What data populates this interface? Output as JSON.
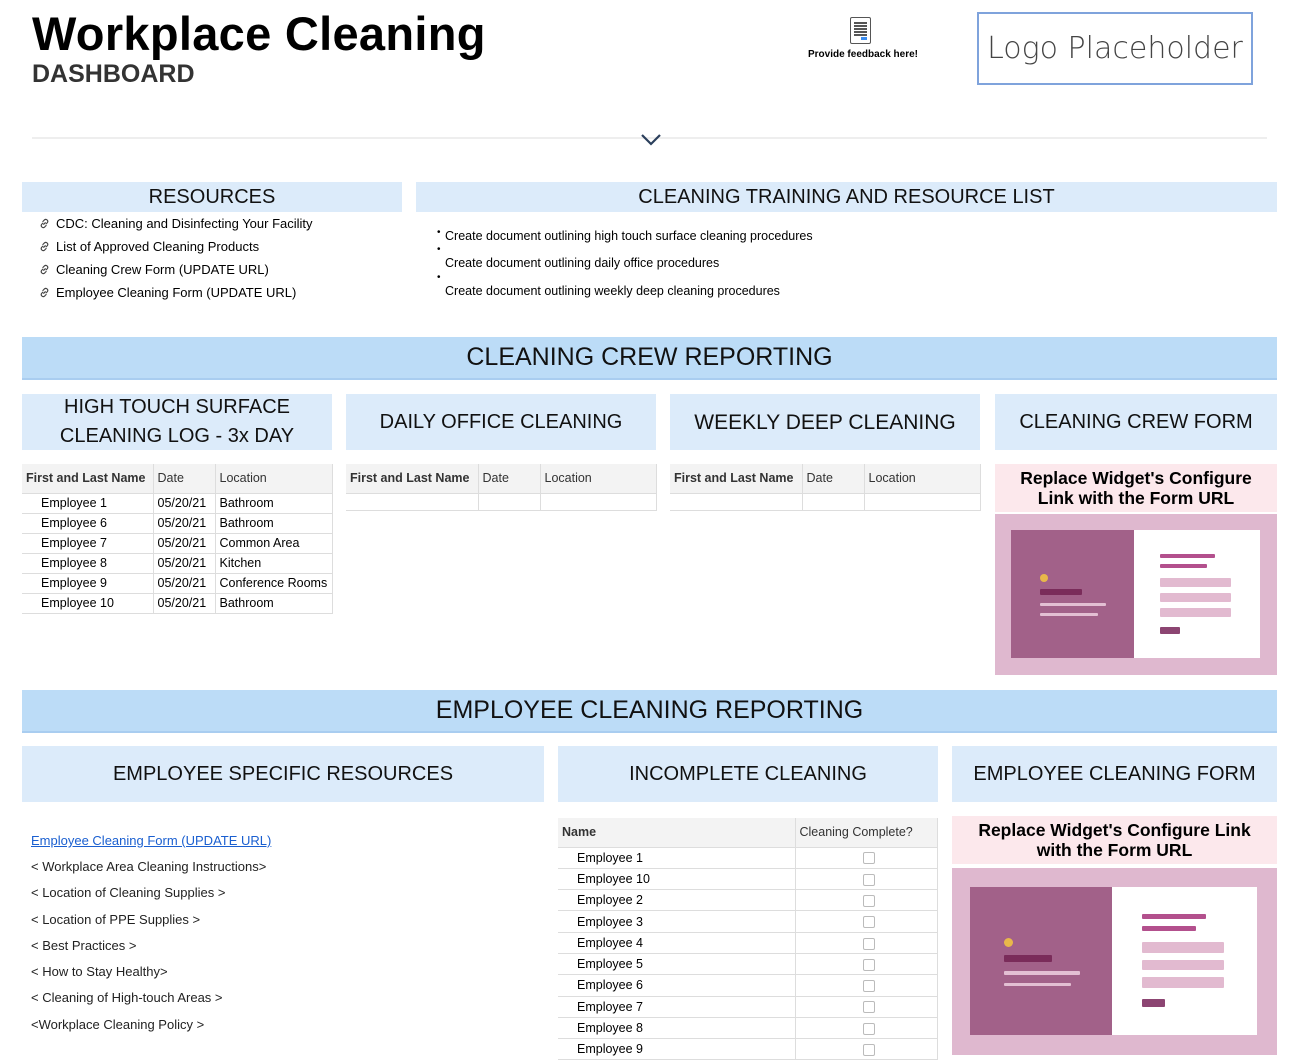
{
  "header": {
    "title": "Workplace Cleaning",
    "subtitle": "DASHBOARD",
    "feedback": "Provide feedback here!",
    "logo": "Logo Placeholder"
  },
  "resources": {
    "title": "RESOURCES",
    "links": [
      "CDC: Cleaning and Disinfecting Your Facility",
      "List of Approved Cleaning Products",
      "Cleaning Crew Form (UPDATE URL)",
      "Employee Cleaning Form (UPDATE URL)"
    ]
  },
  "training": {
    "title": "CLEANING TRAINING AND RESOURCE LIST",
    "items": [
      "Create document outlining high touch surface cleaning procedures",
      "Create document outlining daily office procedures",
      "Create document outlining weekly deep cleaning procedures"
    ]
  },
  "crew": {
    "title": "CLEANING CREW REPORTING",
    "high_touch": {
      "title_line1": "HIGH TOUCH SURFACE",
      "title_line2": "CLEANING LOG - 3x DAY",
      "columns": [
        "First and Last Name",
        "Date",
        "Location"
      ],
      "rows": [
        [
          "Employee 1",
          "05/20/21",
          "Bathroom"
        ],
        [
          "Employee 6",
          "05/20/21",
          "Bathroom"
        ],
        [
          "Employee 7",
          "05/20/21",
          "Common Area"
        ],
        [
          "Employee 8",
          "05/20/21",
          "Kitchen"
        ],
        [
          "Employee 9",
          "05/20/21",
          "Conference Rooms"
        ],
        [
          "Employee 10",
          "05/20/21",
          "Bathroom"
        ]
      ]
    },
    "daily": {
      "title": "DAILY OFFICE CLEANING",
      "columns": [
        "First and Last Name",
        "Date",
        "Location"
      ]
    },
    "weekly": {
      "title": "WEEKLY DEEP CLEANING",
      "columns": [
        "First and Last Name",
        "Date",
        "Location"
      ]
    },
    "form": {
      "title": "CLEANING CREW FORM",
      "caption_line1": "Replace Widget's Configure",
      "caption_line2": "Link with the Form URL"
    }
  },
  "employee": {
    "title": "EMPLOYEE CLEANING REPORTING",
    "resources": {
      "title": "EMPLOYEE SPECIFIC RESOURCES",
      "links": [
        "Employee Cleaning Form (UPDATE URL)",
        "< Workplace Area Cleaning Instructions>",
        "< Location of Cleaning Supplies >",
        "< Location of PPE Supplies >",
        "< Best Practices >",
        "< How to Stay Healthy>",
        "< Cleaning of High-touch Areas >",
        "<Workplace Cleaning Policy >"
      ]
    },
    "incomplete": {
      "title": "INCOMPLETE CLEANING",
      "columns": [
        "Name",
        "Cleaning Complete?"
      ],
      "rows": [
        {
          "name": "Employee 1",
          "complete": false
        },
        {
          "name": "Employee 10",
          "complete": false
        },
        {
          "name": "Employee 2",
          "complete": false
        },
        {
          "name": "Employee 3",
          "complete": false
        },
        {
          "name": "Employee 4",
          "complete": false
        },
        {
          "name": "Employee 5",
          "complete": false
        },
        {
          "name": "Employee 6",
          "complete": false
        },
        {
          "name": "Employee 7",
          "complete": false
        },
        {
          "name": "Employee 8",
          "complete": false
        },
        {
          "name": "Employee 9",
          "complete": false
        }
      ]
    },
    "form": {
      "title": "EMPLOYEE CLEANING FORM",
      "caption_line1": "Replace Widget's Configure Link",
      "caption_line2": "with the Form URL"
    }
  },
  "colors": {
    "header_bg": "#dcebfa",
    "band_bg": "#bcdcf7",
    "link": "#1a5fd0",
    "widget_caption_bg": "#fce8ec",
    "widget_bg": "#dfb8cf",
    "widget_dark": "#a26189"
  }
}
